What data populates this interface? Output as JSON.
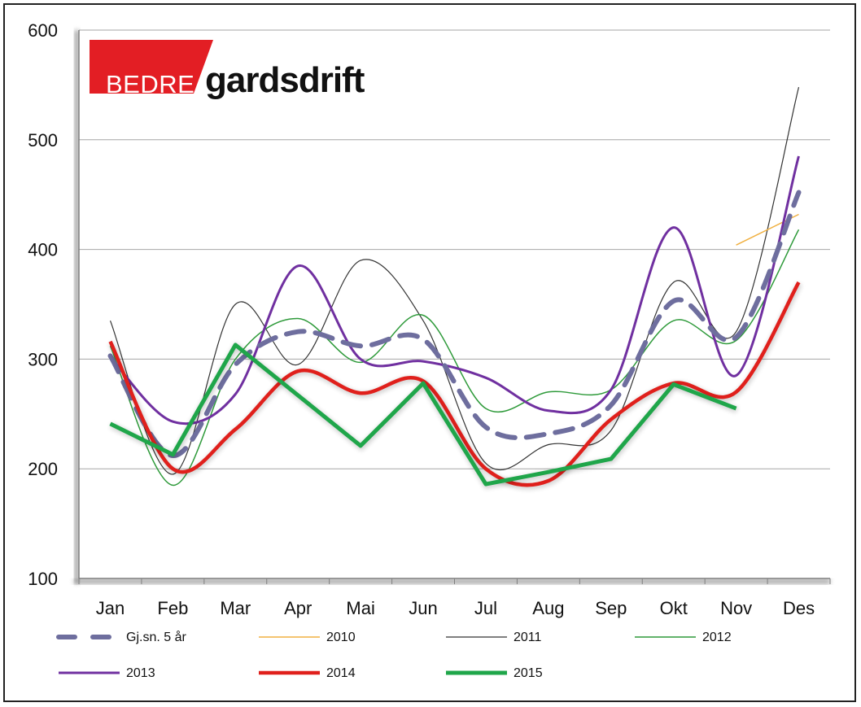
{
  "logo": {
    "part1": "BEDRE",
    "part2": "gardsdrift",
    "colors": {
      "red": "#e31e24",
      "text": "#111111"
    }
  },
  "chart_data": {
    "type": "line",
    "categories": [
      "Jan",
      "Feb",
      "Mar",
      "Apr",
      "Mai",
      "Jun",
      "Jul",
      "Aug",
      "Sep",
      "Okt",
      "Nov",
      "Des"
    ],
    "yticks": [
      100,
      200,
      300,
      400,
      500,
      600
    ],
    "ylim": [
      100,
      600
    ],
    "grid": true,
    "legend_position": "bottom",
    "series": [
      {
        "name": "Gj.sn. 5 år",
        "color": "#6e6e9e",
        "width": 6,
        "dash": "22 14",
        "smooth": true,
        "values": [
          303,
          212,
          295,
          325,
          312,
          318,
          238,
          232,
          258,
          353,
          320,
          452
        ]
      },
      {
        "name": "2010",
        "color": "#f0b040",
        "width": 1.5,
        "dash": "",
        "smooth": true,
        "values": [
          null,
          null,
          null,
          null,
          null,
          null,
          null,
          null,
          null,
          null,
          404,
          432
        ]
      },
      {
        "name": "2011",
        "color": "#333333",
        "width": 1.2,
        "dash": "",
        "smooth": true,
        "values": [
          335,
          195,
          350,
          295,
          390,
          335,
          205,
          222,
          235,
          370,
          325,
          548
        ]
      },
      {
        "name": "2012",
        "color": "#2e9a3a",
        "width": 1.5,
        "dash": "",
        "smooth": true,
        "values": [
          312,
          185,
          300,
          337,
          297,
          340,
          255,
          270,
          272,
          335,
          317,
          418
        ]
      },
      {
        "name": "2013",
        "color": "#7030a0",
        "width": 3,
        "dash": "",
        "smooth": true,
        "values": [
          302,
          243,
          268,
          385,
          300,
          298,
          283,
          253,
          272,
          420,
          285,
          485
        ]
      },
      {
        "name": "2014",
        "color": "#e0201c",
        "width": 4.5,
        "dash": "",
        "smooth": true,
        "values": [
          316,
          200,
          236,
          289,
          269,
          280,
          200,
          189,
          245,
          278,
          270,
          370
        ]
      },
      {
        "name": "2015",
        "color": "#1fa64a",
        "width": 5,
        "dash": "",
        "smooth": false,
        "values": [
          241,
          213,
          313,
          267,
          221,
          278,
          186,
          197,
          209,
          277,
          255,
          null
        ]
      }
    ]
  }
}
